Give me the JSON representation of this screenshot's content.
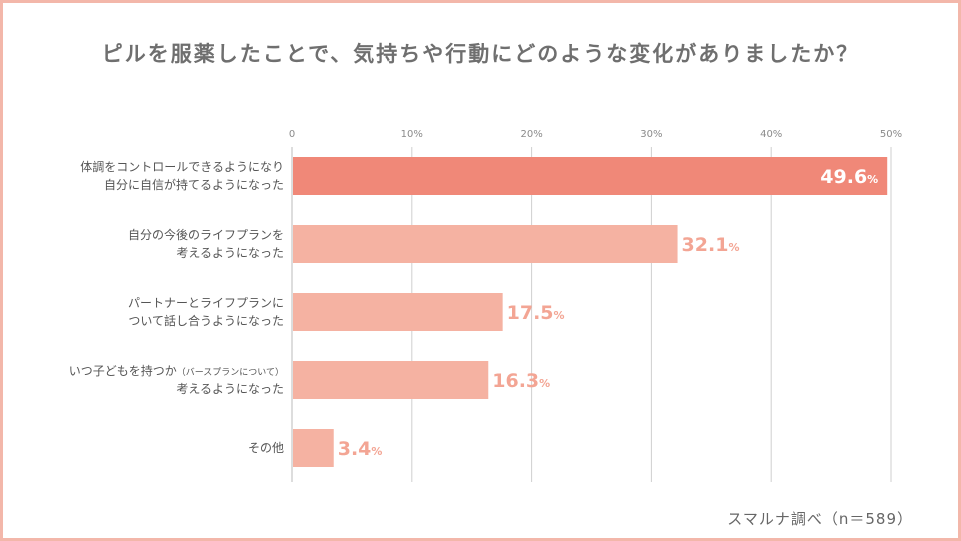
{
  "title": "ピルを服薬したことで、気持ちや行動にどのような変化がありましたか？",
  "source": "スマルナ調べ（n＝589）",
  "colors": {
    "highlight": "#f08878",
    "bar": "#f5b2a2",
    "label_light": "#f3a594",
    "frame": "#f3b7aa"
  },
  "chart_data": {
    "type": "bar",
    "orientation": "horizontal",
    "title": "ピルを服薬したことで、気持ちや行動にどのような変化がありましたか？",
    "xlim": [
      0,
      50
    ],
    "ticks": [
      "0",
      "10%",
      "20%",
      "30%",
      "40%",
      "50%"
    ],
    "tick_values": [
      0,
      10,
      20,
      30,
      40,
      50
    ],
    "grid": true,
    "categories": [
      {
        "lines": [
          "体調をコントロールできるようになり",
          "自分に自信が持てるようになった"
        ],
        "small": ""
      },
      {
        "lines": [
          "自分の今後のライフプランを",
          "考えるようになった"
        ],
        "small": ""
      },
      {
        "lines": [
          "パートナーとライフプランに",
          "ついて話し合うようになった"
        ],
        "small": ""
      },
      {
        "lines": [
          "いつ子どもを持つか",
          "考えるようになった"
        ],
        "small": "（バースプランについて）"
      },
      {
        "lines": [
          "その他"
        ],
        "small": ""
      }
    ],
    "values": [
      49.6,
      32.1,
      17.5,
      16.3,
      3.4
    ],
    "value_labels": [
      "49.6",
      "32.1",
      "17.5",
      "16.3",
      "3.4"
    ],
    "unit": "%"
  }
}
